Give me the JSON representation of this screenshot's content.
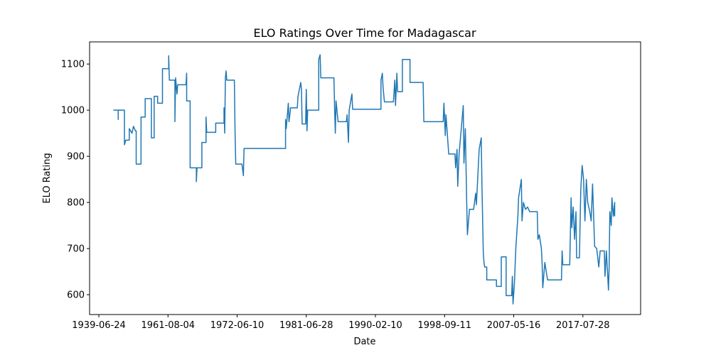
{
  "chart_data": {
    "type": "line",
    "title": "ELO Ratings Over Time for Madagascar",
    "x_label": "Date",
    "y_label": "ELO Rating",
    "color": "#1f77b4",
    "grid": false,
    "x": [
      21,
      28,
      28,
      28,
      37,
      37,
      39,
      44,
      44,
      48,
      50,
      53,
      54,
      54,
      61,
      61,
      67,
      67,
      76,
      76,
      80,
      80,
      85,
      85,
      92,
      92,
      101,
      101,
      102,
      110,
      110,
      111,
      113,
      114,
      126,
      127,
      127,
      132,
      132,
      141,
      141,
      142,
      149,
      149,
      155,
      155,
      156,
      169,
      169,
      181,
      181,
      182,
      183,
      184,
      185,
      196,
      197,
      198,
      207,
      209,
      210,
      270,
      270,
      271,
      274,
      275,
      277,
      277,
      287,
      288,
      292,
      293,
      294,
      299,
      300,
      301,
      302,
      318,
      318,
      320,
      321,
      340,
      341,
      342,
      343,
      346,
      358,
      359,
      361,
      362,
      366,
      367,
      408,
      408,
      410,
      411,
      413,
      426,
      428,
      429,
      431,
      432,
      439,
      439,
      450,
      450,
      469,
      470,
      498,
      499,
      500,
      501,
      502,
      506,
      515,
      516,
      518,
      519,
      521,
      527,
      528,
      530,
      532,
      533,
      536,
      542,
      545,
      546,
      547,
      550,
      553,
      554,
      556,
      557,
      558,
      561,
      561,
      575,
      575,
      582,
      582,
      589,
      589,
      597,
      598,
      599,
      601,
      603,
      606,
      607,
      609,
      611,
      612,
      614,
      617,
      620,
      623,
      634,
      635,
      637,
      640,
      641,
      642,
      645,
      647,
      649,
      669,
      670,
      671,
      681,
      683,
      684,
      686,
      688,
      690,
      691,
      695,
      697,
      699,
      701,
      703,
      705,
      707,
      710,
      712,
      714,
      717,
      720,
      723,
      725,
      731,
      732,
      734,
      737,
      738,
      739,
      741,
      742,
      744,
      746,
      746
    ],
    "values": [
      1000,
      1000,
      980,
      1000,
      1000,
      925,
      935,
      935,
      960,
      950,
      965,
      955,
      955,
      883,
      883,
      985,
      985,
      1025,
      1025,
      940,
      940,
      1030,
      1030,
      1015,
      1015,
      1090,
      1090,
      1118,
      1065,
      1065,
      975,
      1070,
      1035,
      1055,
      1055,
      1080,
      1020,
      1020,
      875,
      875,
      845,
      875,
      875,
      930,
      930,
      985,
      952,
      952,
      972,
      972,
      1005,
      950,
      1070,
      1085,
      1065,
      1065,
      950,
      883,
      883,
      858,
      917,
      917,
      980,
      960,
      1015,
      975,
      1000,
      1005,
      1005,
      1030,
      1060,
      1045,
      970,
      970,
      1045,
      955,
      1000,
      1000,
      1110,
      1120,
      1070,
      1070,
      1000,
      950,
      1020,
      975,
      975,
      990,
      930,
      1000,
      1035,
      1002,
      1002,
      1065,
      1080,
      1050,
      1018,
      1018,
      1065,
      1010,
      1080,
      1040,
      1040,
      1110,
      1110,
      1060,
      1060,
      975,
      975,
      1015,
      985,
      945,
      990,
      905,
      905,
      875,
      915,
      835,
      905,
      1010,
      885,
      960,
      800,
      730,
      785,
      785,
      820,
      795,
      825,
      915,
      940,
      840,
      690,
      670,
      660,
      660,
      632,
      632,
      618,
      618,
      682,
      682,
      598,
      598,
      640,
      580,
      625,
      700,
      770,
      810,
      830,
      850,
      760,
      800,
      785,
      790,
      780,
      780,
      720,
      730,
      700,
      670,
      615,
      670,
      650,
      632,
      632,
      695,
      665,
      665,
      810,
      745,
      790,
      720,
      780,
      680,
      680,
      830,
      880,
      850,
      760,
      850,
      800,
      780,
      760,
      840,
      705,
      700,
      660,
      695,
      695,
      640,
      695,
      610,
      660,
      780,
      750,
      810,
      770,
      800,
      770
    ],
    "xlim": [
      -13.4,
      783.5
    ],
    "xticks": [
      {
        "value": 0,
        "label": "1939-06-24"
      },
      {
        "value": 100,
        "label": "1961-08-04"
      },
      {
        "value": 200,
        "label": "1972-06-10"
      },
      {
        "value": 300,
        "label": "1981-06-28"
      },
      {
        "value": 400,
        "label": "1990-02-10"
      },
      {
        "value": 500,
        "label": "1998-09-11"
      },
      {
        "value": 600,
        "label": "2007-05-16"
      },
      {
        "value": 700,
        "label": "2017-07-28"
      }
    ],
    "ylim": [
      557,
      1148
    ],
    "yticks": [
      600,
      700,
      800,
      900,
      1000,
      1100
    ]
  }
}
